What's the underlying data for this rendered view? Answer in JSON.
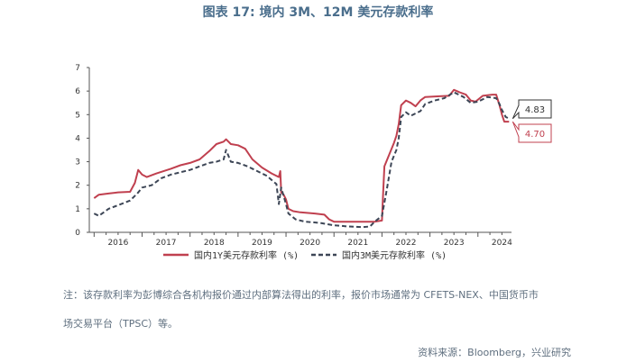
{
  "title": "图表 17: 境内 3M、12M 美元存款利率",
  "note_line1": "注：该存款利率为彭博综合各机构报价通过内部算法得出的利率，报价市场通常为 CFETS-NEX、中国货币市",
  "note_line2": "场交易平台（TPSC）等。",
  "source": "资料来源：Bloomberg，兴业研究",
  "colors": {
    "series_1y": "#c0404f",
    "series_3m": "#3d4656",
    "axis": "#555555"
  },
  "chart_data": {
    "type": "line",
    "ylim": [
      0,
      7
    ],
    "yticks": [
      "0",
      "1",
      "2",
      "3",
      "4",
      "5",
      "6",
      "7"
    ],
    "xlim": [
      2015.9,
      2024.7
    ],
    "xtick_labels": [
      "2016",
      "2017",
      "2018",
      "2019",
      "2020",
      "2021",
      "2022",
      "2023",
      "2024"
    ],
    "legend_position": "bottom",
    "series": [
      {
        "name": "国内1Y美元存款利率 (%)",
        "style": "solid",
        "end_label": "4.70",
        "points": [
          [
            2016.0,
            1.45
          ],
          [
            2016.1,
            1.6
          ],
          [
            2016.3,
            1.65
          ],
          [
            2016.5,
            1.7
          ],
          [
            2016.75,
            1.72
          ],
          [
            2016.85,
            2.1
          ],
          [
            2016.92,
            2.65
          ],
          [
            2017.0,
            2.45
          ],
          [
            2017.1,
            2.35
          ],
          [
            2017.3,
            2.5
          ],
          [
            2017.6,
            2.7
          ],
          [
            2017.8,
            2.85
          ],
          [
            2018.0,
            2.95
          ],
          [
            2018.2,
            3.1
          ],
          [
            2018.4,
            3.45
          ],
          [
            2018.55,
            3.75
          ],
          [
            2018.7,
            3.85
          ],
          [
            2018.75,
            3.95
          ],
          [
            2018.85,
            3.75
          ],
          [
            2019.0,
            3.7
          ],
          [
            2019.15,
            3.55
          ],
          [
            2019.3,
            3.1
          ],
          [
            2019.5,
            2.75
          ],
          [
            2019.7,
            2.5
          ],
          [
            2019.85,
            2.35
          ],
          [
            2019.88,
            2.6
          ],
          [
            2019.9,
            1.7
          ],
          [
            2019.95,
            1.6
          ],
          [
            2020.0,
            1.4
          ],
          [
            2020.05,
            1.0
          ],
          [
            2020.15,
            0.9
          ],
          [
            2020.3,
            0.85
          ],
          [
            2020.6,
            0.8
          ],
          [
            2020.8,
            0.75
          ],
          [
            2020.9,
            0.55
          ],
          [
            2021.0,
            0.45
          ],
          [
            2021.3,
            0.45
          ],
          [
            2021.6,
            0.45
          ],
          [
            2021.85,
            0.45
          ],
          [
            2022.0,
            0.5
          ],
          [
            2022.02,
            1.5
          ],
          [
            2022.05,
            2.8
          ],
          [
            2022.15,
            3.3
          ],
          [
            2022.25,
            3.8
          ],
          [
            2022.3,
            4.1
          ],
          [
            2022.35,
            4.6
          ],
          [
            2022.4,
            5.4
          ],
          [
            2022.5,
            5.6
          ],
          [
            2022.6,
            5.5
          ],
          [
            2022.7,
            5.35
          ],
          [
            2022.8,
            5.6
          ],
          [
            2022.9,
            5.75
          ],
          [
            2023.2,
            5.78
          ],
          [
            2023.4,
            5.8
          ],
          [
            2023.5,
            6.05
          ],
          [
            2023.62,
            5.95
          ],
          [
            2023.75,
            5.85
          ],
          [
            2023.85,
            5.6
          ],
          [
            2023.95,
            5.55
          ],
          [
            2024.1,
            5.8
          ],
          [
            2024.3,
            5.85
          ],
          [
            2024.38,
            5.85
          ],
          [
            2024.45,
            5.4
          ],
          [
            2024.5,
            5.0
          ],
          [
            2024.55,
            4.7
          ],
          [
            2024.65,
            4.7
          ]
        ]
      },
      {
        "name": "国内3M美元存款利率 (%)",
        "style": "dashed",
        "end_label": "4.83",
        "points": [
          [
            2016.0,
            0.8
          ],
          [
            2016.1,
            0.7
          ],
          [
            2016.3,
            1.0
          ],
          [
            2016.5,
            1.15
          ],
          [
            2016.75,
            1.35
          ],
          [
            2016.9,
            1.65
          ],
          [
            2017.0,
            1.9
          ],
          [
            2017.2,
            2.0
          ],
          [
            2017.4,
            2.3
          ],
          [
            2017.6,
            2.45
          ],
          [
            2017.8,
            2.55
          ],
          [
            2018.0,
            2.65
          ],
          [
            2018.2,
            2.8
          ],
          [
            2018.4,
            2.95
          ],
          [
            2018.55,
            3.0
          ],
          [
            2018.7,
            3.1
          ],
          [
            2018.75,
            3.5
          ],
          [
            2018.85,
            3.0
          ],
          [
            2019.0,
            2.95
          ],
          [
            2019.2,
            2.8
          ],
          [
            2019.4,
            2.6
          ],
          [
            2019.6,
            2.4
          ],
          [
            2019.8,
            2.05
          ],
          [
            2019.85,
            1.2
          ],
          [
            2019.9,
            1.9
          ],
          [
            2020.0,
            1.2
          ],
          [
            2020.05,
            0.8
          ],
          [
            2020.2,
            0.55
          ],
          [
            2020.4,
            0.45
          ],
          [
            2020.7,
            0.4
          ],
          [
            2021.0,
            0.3
          ],
          [
            2021.3,
            0.25
          ],
          [
            2021.6,
            0.22
          ],
          [
            2021.75,
            0.25
          ],
          [
            2021.85,
            0.45
          ],
          [
            2022.0,
            0.7
          ],
          [
            2022.1,
            1.8
          ],
          [
            2022.2,
            3.0
          ],
          [
            2022.3,
            3.5
          ],
          [
            2022.35,
            4.0
          ],
          [
            2022.4,
            4.9
          ],
          [
            2022.5,
            5.1
          ],
          [
            2022.6,
            4.95
          ],
          [
            2022.7,
            5.05
          ],
          [
            2022.8,
            5.15
          ],
          [
            2022.9,
            5.45
          ],
          [
            2023.1,
            5.6
          ],
          [
            2023.3,
            5.7
          ],
          [
            2023.5,
            5.95
          ],
          [
            2023.6,
            5.85
          ],
          [
            2023.7,
            5.75
          ],
          [
            2023.85,
            5.5
          ],
          [
            2024.0,
            5.55
          ],
          [
            2024.2,
            5.75
          ],
          [
            2024.38,
            5.7
          ],
          [
            2024.45,
            5.45
          ],
          [
            2024.5,
            5.2
          ],
          [
            2024.58,
            4.9
          ],
          [
            2024.65,
            4.83
          ]
        ]
      }
    ]
  }
}
